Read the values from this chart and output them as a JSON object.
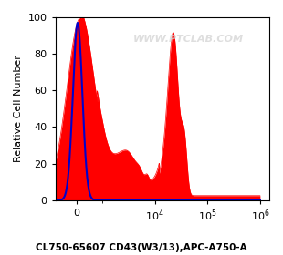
{
  "title": "CL750-65607 CD43(W3/13),APC-A750-A",
  "ylabel": "Relative Cell Number",
  "watermark": "WWW.PTCLAB.COM",
  "background_color": "#ffffff",
  "plot_bg_color": "#ffffff",
  "ylim": [
    0,
    100
  ],
  "yticks": [
    0,
    20,
    40,
    60,
    80,
    100
  ],
  "red_color": "#ff0000",
  "blue_color": "#0000cc",
  "border_color": "#000000",
  "tick_color": "#000000",
  "linthresh": 1000,
  "linscale": 0.45
}
